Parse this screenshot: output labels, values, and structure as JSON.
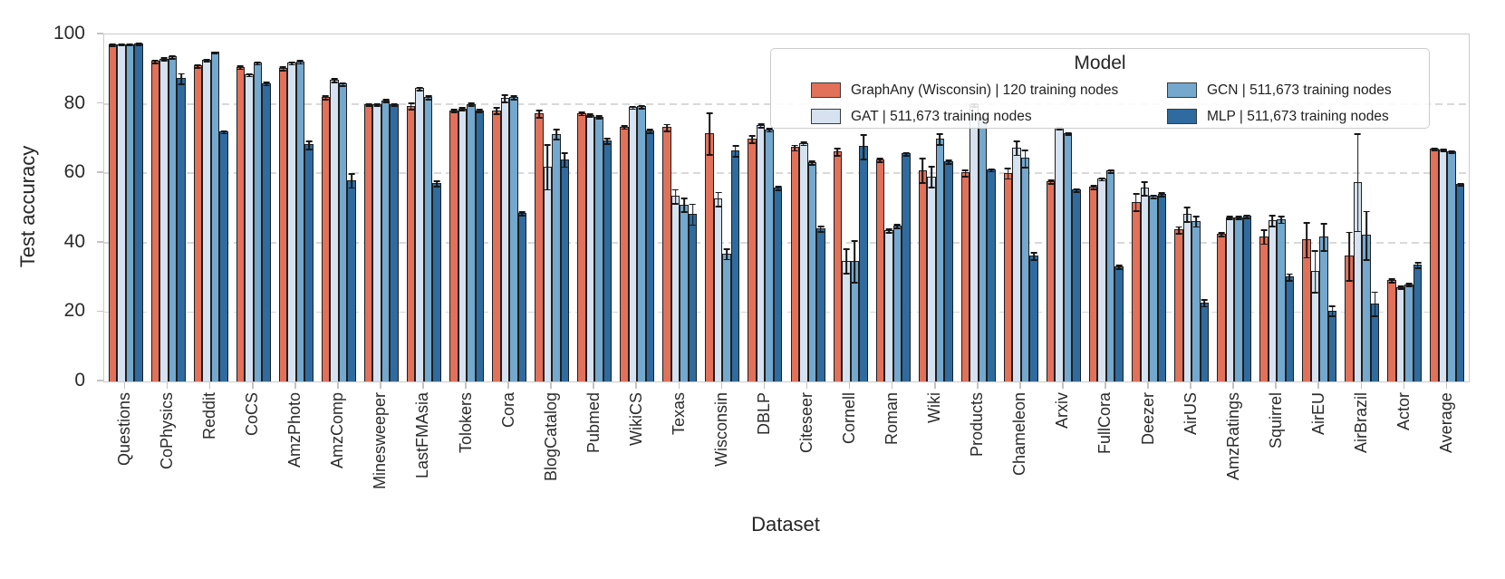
{
  "chart_data": {
    "type": "bar",
    "title": "",
    "xlabel": "Dataset",
    "ylabel": "Test accuracy",
    "ylim": [
      0,
      100
    ],
    "yticks": [
      0,
      20,
      40,
      60,
      80,
      100
    ],
    "grid_values": [
      20,
      40,
      60,
      80
    ],
    "grid": "horizontal dashed",
    "legend_title": "Model",
    "legend_position": "upper right, two columns",
    "categories": [
      "Questions",
      "CoPhysics",
      "Reddit",
      "CoCS",
      "AmzPhoto",
      "AmzComp",
      "Minesweeper",
      "LastFMAsia",
      "Tolokers",
      "Cora",
      "BlogCatalog",
      "Pubmed",
      "WikiCS",
      "Texas",
      "Wisconsin",
      "DBLP",
      "Citeseer",
      "Cornell",
      "Roman",
      "Wiki",
      "Products",
      "Chameleon",
      "Arxiv",
      "FullCora",
      "Deezer",
      "AirUS",
      "AmzRatings",
      "Squirrel",
      "AirEU",
      "AirBrazil",
      "Actor",
      "Average"
    ],
    "series": [
      {
        "name": "GraphAny (Wisconsin) | 120 training nodes",
        "color": "#e2715a",
        "values": [
          97.2,
          92.4,
          91.0,
          90.7,
          90.3,
          82.0,
          80.0,
          79.5,
          78.2,
          78.2,
          77.3,
          77.4,
          73.5,
          73.3,
          71.5,
          70.0,
          67.5,
          66.3,
          64.0,
          60.9,
          60.2,
          60.1,
          57.7,
          56.2,
          51.8,
          43.8,
          42.6,
          41.8,
          40.9,
          36.2,
          29.3,
          67.2
        ],
        "errors": [
          0.3,
          0.4,
          0.4,
          0.5,
          0.5,
          0.5,
          0.3,
          1.0,
          0.3,
          1.0,
          1.0,
          0.5,
          0.5,
          1.0,
          6.0,
          1.0,
          0.8,
          1.0,
          0.5,
          3.5,
          1.0,
          1.5,
          0.5,
          0.5,
          2.5,
          1.0,
          0.5,
          2.0,
          5.0,
          7.0,
          0.5,
          0.3
        ]
      },
      {
        "name": "GAT | 511,673 training nodes",
        "color": "#d6e2ef",
        "values": [
          97.2,
          93.0,
          92.8,
          88.5,
          91.9,
          86.9,
          80.0,
          84.5,
          78.7,
          81.7,
          62.0,
          76.8,
          79.1,
          53.5,
          52.7,
          73.9,
          68.8,
          34.8,
          43.6,
          59.1,
          79.8,
          67.4,
          73.2,
          58.5,
          55.8,
          48.3,
          47.3,
          46.5,
          31.8,
          57.5,
          27.2,
          66.9
        ],
        "errors": [
          0.2,
          0.4,
          0.3,
          0.4,
          0.4,
          0.5,
          0.3,
          0.5,
          0.4,
          1.0,
          6.5,
          0.4,
          0.4,
          2.0,
          2.0,
          0.5,
          0.5,
          3.5,
          0.5,
          3.0,
          0.5,
          2.0,
          0.3,
          0.4,
          2.0,
          2.0,
          0.4,
          1.5,
          6.0,
          14.0,
          0.4,
          0.3
        ]
      },
      {
        "name": "GCN | 511,673 training nodes",
        "color": "#74a8cd",
        "values": [
          97.2,
          93.7,
          95.0,
          91.9,
          92.2,
          85.8,
          81.0,
          82.0,
          80.0,
          82.0,
          71.4,
          76.3,
          79.3,
          51.0,
          36.9,
          72.7,
          63.2,
          34.8,
          44.9,
          70.0,
          76.0,
          64.4,
          71.6,
          60.8,
          53.4,
          46.3,
          47.3,
          46.8,
          41.8,
          42.2,
          28.0,
          66.3
        ],
        "errors": [
          0.2,
          0.4,
          0.2,
          0.4,
          0.4,
          0.4,
          0.4,
          0.5,
          0.4,
          0.5,
          1.5,
          0.4,
          0.4,
          2.0,
          1.5,
          0.5,
          0.5,
          6.0,
          0.5,
          1.5,
          0.3,
          2.5,
          0.3,
          0.4,
          0.4,
          1.5,
          0.4,
          1.0,
          4.0,
          7.0,
          0.4,
          0.3
        ]
      },
      {
        "name": "MLP | 511,673 training nodes",
        "color": "#2f6b9f",
        "values": [
          97.4,
          87.4,
          72.0,
          86.0,
          68.3,
          58.0,
          80.0,
          57.2,
          78.2,
          48.6,
          64.0,
          69.5,
          72.4,
          48.3,
          66.6,
          55.9,
          44.2,
          67.8,
          65.7,
          63.5,
          61.0,
          36.3,
          55.3,
          33.2,
          54.0,
          22.8,
          47.7,
          30.2,
          20.5,
          22.5,
          33.7,
          57.0
        ],
        "errors": [
          0.2,
          1.5,
          0.3,
          0.5,
          1.2,
          2.0,
          0.3,
          0.8,
          0.3,
          0.5,
          2.0,
          0.8,
          0.5,
          3.0,
          1.5,
          0.5,
          0.8,
          3.5,
          0.5,
          0.5,
          0.3,
          1.0,
          0.4,
          0.5,
          0.5,
          1.0,
          0.5,
          1.0,
          1.5,
          3.5,
          0.8,
          0.3
        ]
      }
    ]
  }
}
